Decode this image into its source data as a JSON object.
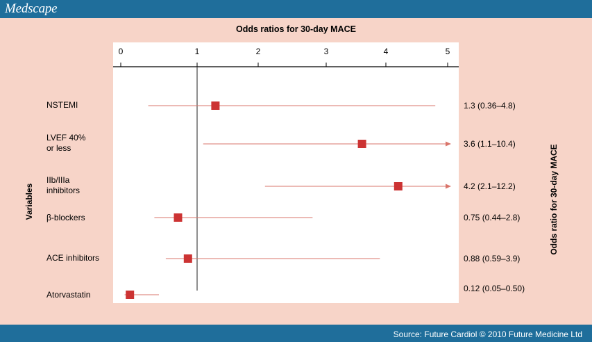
{
  "header": {
    "logo": "Medscape"
  },
  "footer": {
    "source": "Source: Future Cardiol © 2010 Future Medicine Ltd"
  },
  "colors": {
    "brand_bar": "#1f6e9b",
    "background": "#f7d4c8",
    "marker": "#cc3333",
    "ci_line": "#d9756b"
  },
  "chart_data": {
    "type": "forest",
    "title": "Odds ratios for 30-day MACE",
    "ylabel": "Variables",
    "right_label": "Odds ratio for 30-day MACE",
    "xlim": [
      0,
      5
    ],
    "xticks": [
      0,
      1,
      2,
      3,
      4,
      5
    ],
    "reference_line": 1,
    "grid": false,
    "rows": [
      {
        "label_lines": [
          "NSTEMI"
        ],
        "or": 1.3,
        "low": 0.36,
        "high": 4.8,
        "text": "1.3 (0.36–4.8)",
        "arrow": false
      },
      {
        "label_lines": [
          "LVEF 40%",
          "or less"
        ],
        "or": 3.6,
        "low": 1.1,
        "high": 10.4,
        "text": "3.6 (1.1–10.4)",
        "arrow": true
      },
      {
        "label_lines": [
          "IIb/IIIa",
          "inhibitors"
        ],
        "or": 4.2,
        "low": 2.1,
        "high": 12.2,
        "text": "4.2 (2.1–12.2)",
        "arrow": true
      },
      {
        "label_lines": [
          "β-blockers"
        ],
        "or": 0.75,
        "low": 0.44,
        "high": 2.8,
        "text": "0.75 (0.44–2.8)",
        "arrow": false
      },
      {
        "label_lines": [
          "ACE inhibitors"
        ],
        "or": 0.88,
        "low": 0.59,
        "high": 3.9,
        "text": "0.88 (0.59–3.9)",
        "arrow": false
      },
      {
        "label_lines": [
          "Atorvastatin"
        ],
        "or": 0.12,
        "low": 0.05,
        "high": 0.5,
        "text": "0.12 (0.05–0.50)",
        "arrow": false
      }
    ]
  }
}
